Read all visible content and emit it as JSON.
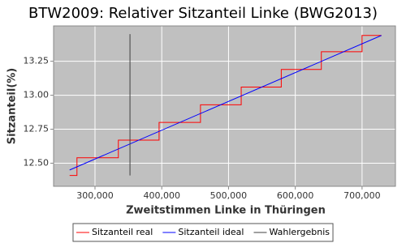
{
  "chart_data": {
    "type": "line",
    "title": "BTW2009: Relativer Sitzanteil Linke (BWG2013)",
    "x_label": "Zweitstimmen Linke in Thüringen",
    "y_label": "Sitzanteil(%)",
    "xlim": [
      238000,
      750000
    ],
    "ylim": [
      12.33,
      13.51
    ],
    "xticks": [
      {
        "value": 300000,
        "label": "300,000"
      },
      {
        "value": 400000,
        "label": "400,000"
      },
      {
        "value": 500000,
        "label": "500,000"
      },
      {
        "value": 600000,
        "label": "600,000"
      },
      {
        "value": 700000,
        "label": "700,000"
      }
    ],
    "yticks": [
      {
        "value": 12.5,
        "label": "12.50"
      },
      12.75,
      {
        "value": 13,
        "label": "13.00"
      },
      13.25
    ],
    "grid": true,
    "legend": "bottom",
    "series": [
      {
        "name": "Sitzanteil real",
        "color": "#ff0000",
        "x": [
          262000,
          273000,
          273000,
          335000,
          335000,
          396000,
          396000,
          458000,
          458000,
          519000,
          519000,
          579000,
          579000,
          639000,
          639000,
          700000,
          700000,
          729000
        ],
        "values": [
          12.41,
          12.41,
          12.54,
          12.54,
          12.67,
          12.67,
          12.8,
          12.8,
          12.93,
          12.93,
          13.06,
          13.06,
          13.19,
          13.19,
          13.32,
          13.32,
          13.44,
          13.44
        ]
      },
      {
        "name": "Sitzanteil ideal",
        "color": "#0000ff",
        "x": [
          262000,
          729000
        ],
        "values": [
          12.45,
          13.44
        ]
      },
      {
        "name": "Wahlergebnis",
        "color": "#404040",
        "x": [
          352400,
          352400
        ],
        "values": [
          12.41,
          13.45
        ]
      }
    ]
  }
}
